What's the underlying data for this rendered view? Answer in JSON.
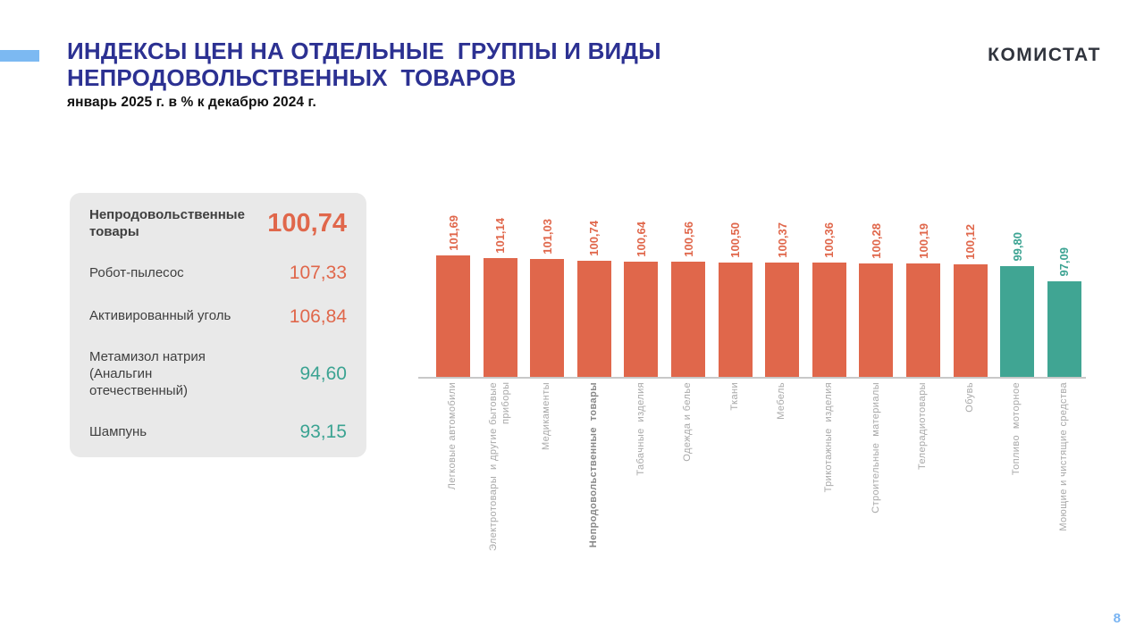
{
  "slide": {
    "title": "ИНДЕКСЫ ЦЕН НА ОТДЕЛЬНЫЕ  ГРУППЫ И ВИДЫ\nНЕПРОДОВОЛЬСТВЕННЫХ  ТОВАРОВ",
    "subtitle": "январь 2025 г. в % к декабрю 2024 г.",
    "logo": "КОМИСТАТ",
    "page_number": "8"
  },
  "colors": {
    "accent_blue": "#7CB9F2",
    "title_navy": "#2C3192",
    "orange": "#E0674B",
    "teal": "#40A593",
    "panel_bg": "#E9E9E9",
    "category_gray": "#A9A9A9",
    "category_gray_bold": "#878787",
    "axis_line": "#C8C8C8",
    "page_number_blue": "#79B4F2"
  },
  "panel": {
    "items": [
      {
        "label": "Непродовольственные\nтовары",
        "value": "100,74",
        "tone": "orange",
        "emphasis": true
      },
      {
        "label": "Робот-пылесос",
        "value": "107,33",
        "tone": "orange",
        "emphasis": false
      },
      {
        "label": "Активированный уголь",
        "value": "106,84",
        "tone": "orange",
        "emphasis": false
      },
      {
        "label": "Метамизол натрия\n(Анальгин\nотечественный)",
        "value": "94,60",
        "tone": "teal",
        "emphasis": false
      },
      {
        "label": "Шампунь",
        "value": "93,15",
        "tone": "teal",
        "emphasis": false
      }
    ]
  },
  "chart_data": {
    "type": "bar",
    "title": "Индексы цен на отдельные группы и виды непродовольственных товаров, январь 2025 г. в % к декабрю 2024 г.",
    "axis_min": 80,
    "grid": false,
    "legend": false,
    "points": [
      {
        "category": "Легковые автомобили",
        "value": 101.69,
        "label": "101,69",
        "tone": "orange",
        "bold": false
      },
      {
        "category": "Электротовары  и другие бытовые\nприборы",
        "value": 101.14,
        "label": "101,14",
        "tone": "orange",
        "bold": false
      },
      {
        "category": "Медикаменты",
        "value": 101.03,
        "label": "101,03",
        "tone": "orange",
        "bold": false
      },
      {
        "category": "Непродовольственные  товары",
        "value": 100.74,
        "label": "100,74",
        "tone": "orange",
        "bold": true
      },
      {
        "category": "Табачные  изделия",
        "value": 100.64,
        "label": "100,64",
        "tone": "orange",
        "bold": false
      },
      {
        "category": "Одежда и белье",
        "value": 100.56,
        "label": "100,56",
        "tone": "orange",
        "bold": false
      },
      {
        "category": "Ткани",
        "value": 100.5,
        "label": "100,50",
        "tone": "orange",
        "bold": false
      },
      {
        "category": "Мебель",
        "value": 100.37,
        "label": "100,37",
        "tone": "orange",
        "bold": false
      },
      {
        "category": "Трикотажные  изделия",
        "value": 100.36,
        "label": "100,36",
        "tone": "orange",
        "bold": false
      },
      {
        "category": "Строительные  материалы",
        "value": 100.28,
        "label": "100,28",
        "tone": "orange",
        "bold": false
      },
      {
        "category": "Телерадиотовары",
        "value": 100.19,
        "label": "100,19",
        "tone": "orange",
        "bold": false
      },
      {
        "category": "Обувь",
        "value": 100.12,
        "label": "100,12",
        "tone": "orange",
        "bold": false
      },
      {
        "category": "Топливо  моторное",
        "value": 99.8,
        "label": "99,80",
        "tone": "teal",
        "bold": false
      },
      {
        "category": "Моющие и чистящие средства",
        "value": 97.09,
        "label": "97,09",
        "tone": "teal",
        "bold": false
      }
    ]
  }
}
